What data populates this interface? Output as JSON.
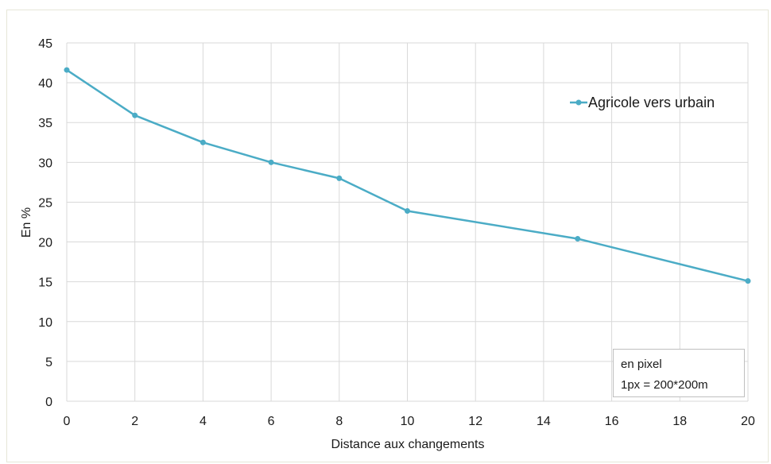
{
  "chart_data": {
    "type": "line",
    "title": "",
    "xlabel": "Distance aux changements",
    "ylabel": "En %",
    "x": [
      0,
      2,
      4,
      6,
      8,
      10,
      15,
      20
    ],
    "series": [
      {
        "name": "Agricole vers urbain",
        "values": [
          41.6,
          35.9,
          32.5,
          30.0,
          28.0,
          23.9,
          20.4,
          15.1
        ],
        "color": "#4BACC6"
      }
    ],
    "xlim": [
      0,
      20
    ],
    "ylim": [
      0,
      45
    ],
    "xticks": [
      "0",
      "2",
      "4",
      "6",
      "8",
      "10",
      "12",
      "14",
      "16",
      "18",
      "20"
    ],
    "yticks": [
      "0",
      "5",
      "10",
      "15",
      "20",
      "25",
      "30",
      "35",
      "40",
      "45"
    ],
    "grid": true,
    "legend_position": "top-right",
    "annotation": {
      "line1": "en pixel",
      "line2": "1px = 200*200m"
    }
  },
  "colors": {
    "series": "#4BACC6",
    "grid": "#d9d9d9",
    "frame": "#e6e6d8"
  }
}
